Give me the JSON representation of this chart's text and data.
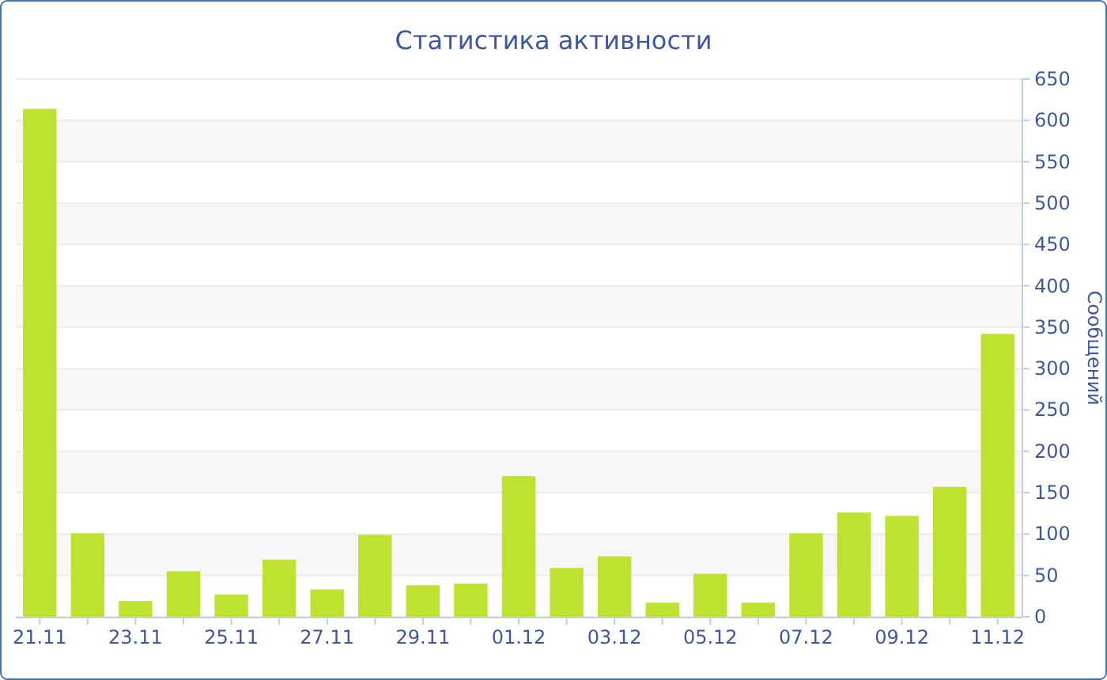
{
  "chart_data": {
    "type": "bar",
    "title": "Статистика активности",
    "ylabel": "Сообщений",
    "categories": [
      "21.11",
      null,
      "23.11",
      null,
      "25.11",
      null,
      "27.11",
      null,
      "29.11",
      null,
      "01.12",
      null,
      "03.12",
      null,
      "05.12",
      null,
      "07.12",
      null,
      "09.12",
      null,
      "11.12"
    ],
    "values": [
      614,
      101,
      19,
      55,
      27,
      69,
      33,
      99,
      38,
      40,
      170,
      59,
      73,
      17,
      52,
      17,
      101,
      126,
      122,
      157,
      342
    ],
    "color": "#bde22f",
    "ylim": [
      0,
      650
    ],
    "yticks": [
      0,
      50,
      100,
      150,
      200,
      250,
      300,
      350,
      400,
      450,
      500,
      550,
      600,
      650
    ],
    "grid": "y"
  }
}
